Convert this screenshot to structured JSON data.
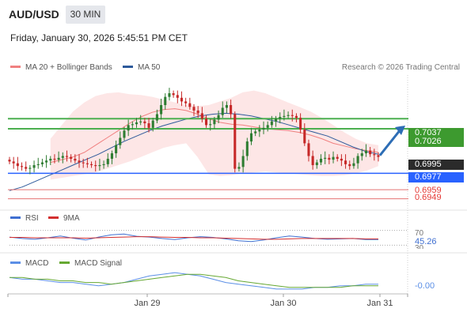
{
  "header": {
    "symbol": "AUD/USD",
    "timeframe": "30 MIN",
    "datetime": "Friday, January 30, 2026 5:45:51 PM CET"
  },
  "legend": {
    "ma20_bb": "MA 20 + Bollinger Bands",
    "ma50": "MA 50",
    "credit": "Research © 2026 Trading Central",
    "rsi": "RSI",
    "rsi_ma": "9MA",
    "macd": "MACD",
    "macd_signal": "MACD Signal"
  },
  "colors": {
    "candle_up": "#2e7d32",
    "candle_down": "#c62828",
    "bollinger_fill": "#fde2e2",
    "ma20": "#f08080",
    "ma50": "#2d5a9b",
    "resistance": "#4caf50",
    "support": "#2962ff",
    "red_level": "#e57373",
    "arrow": "#2d6db5",
    "rsi": "#3f6fd1",
    "rsi_ma": "#d32f2f",
    "macd": "#5b8fe6",
    "macd_signal": "#66a832"
  },
  "levels": {
    "resistance_1": "0.7037",
    "resistance_2": "0.7026",
    "current": "0.6995",
    "support_1": "0.6977",
    "support_2": "0.6959",
    "support_3": "0.6949"
  },
  "x_labels": [
    "Jan 29",
    "Jan 30",
    "Jan 31"
  ],
  "rsi_labels": {
    "level_70": "70",
    "value": "45.26",
    "level_30": "30"
  },
  "macd_labels": {
    "value": "-0.00"
  },
  "chart_data": [
    {
      "type": "candlestick",
      "title": "AUD/USD",
      "timeframe": "30 MIN",
      "x_tick_labels": [
        "Jan 29",
        "Jan 30",
        "Jan 31"
      ],
      "ylim": [
        0.694,
        0.7085
      ],
      "close": [
        0.699,
        0.6988,
        0.6985,
        0.6984,
        0.6982,
        0.6983,
        0.6986,
        0.6987,
        0.6989,
        0.6991,
        0.6993,
        0.6992,
        0.6994,
        0.6996,
        0.6995,
        0.6993,
        0.6991,
        0.6989,
        0.6988,
        0.6987,
        0.6986,
        0.6985,
        0.6986,
        0.6987,
        0.6993,
        0.6999,
        0.7008,
        0.7016,
        0.7024,
        0.703,
        0.7031,
        0.7033,
        0.7034,
        0.7032,
        0.7027,
        0.7035,
        0.7042,
        0.7052,
        0.7061,
        0.7065,
        0.7063,
        0.706,
        0.7056,
        0.7054,
        0.705,
        0.7046,
        0.7043,
        0.7037,
        0.703,
        0.7031,
        0.7036,
        0.7041,
        0.7049,
        0.7052,
        0.7042,
        0.6982,
        0.6984,
        0.6996,
        0.7012,
        0.7021,
        0.7023,
        0.7025,
        0.7027,
        0.703,
        0.7034,
        0.7037,
        0.7039,
        0.704,
        0.7041,
        0.704,
        0.7038,
        0.7025,
        0.701,
        0.6996,
        0.6986,
        0.6989,
        0.6993,
        0.6994,
        0.6992,
        0.6995,
        0.6993,
        0.6991,
        0.6987,
        0.6985,
        0.6988,
        0.6996,
        0.6999,
        0.7002,
        0.6998,
        0.6997,
        0.6995
      ],
      "series": [
        {
          "name": "MA 20 + Bollinger Bands",
          "role": "ma20",
          "start_bar": 10,
          "values": [
            0.6989,
            0.6992,
            0.6995,
            0.7,
            0.7008,
            0.7016,
            0.7024,
            0.7032,
            0.7039,
            0.7044,
            0.7047,
            0.7048,
            0.7046,
            0.7042,
            0.7037,
            0.7033,
            0.7031,
            0.703,
            0.7028,
            0.7026,
            0.7025,
            0.7024,
            0.7022,
            0.7019,
            0.7015,
            0.701,
            0.7007,
            0.7004,
            0.7002,
            0.7
          ]
        },
        {
          "name": "Bollinger upper",
          "role": "bb_upper",
          "start_bar": 10,
          "values": [
            0.7015,
            0.703,
            0.7045,
            0.7055,
            0.7062,
            0.7065,
            0.7066,
            0.7064,
            0.7063,
            0.7061,
            0.7058,
            0.7055,
            0.7052,
            0.7051,
            0.7052,
            0.7056,
            0.706,
            0.7066,
            0.7068,
            0.7065,
            0.706,
            0.7055,
            0.705,
            0.7045,
            0.7038,
            0.703,
            0.7022,
            0.7015,
            0.701,
            0.7008
          ]
        },
        {
          "name": "Bollinger lower",
          "role": "bb_lower",
          "start_bar": 10,
          "values": [
            0.697,
            0.6972,
            0.6974,
            0.6976,
            0.6978,
            0.6982,
            0.6986,
            0.699,
            0.6995,
            0.7,
            0.7005,
            0.7008,
            0.701,
            0.6995,
            0.6976,
            0.6974,
            0.6975,
            0.6977,
            0.6978,
            0.6979,
            0.6978,
            0.6977,
            0.6976,
            0.6975,
            0.6974,
            0.6974,
            0.6975,
            0.6977,
            0.698,
            0.6985
          ]
        },
        {
          "name": "MA 50",
          "role": "ma50",
          "start_bar": 0,
          "values": [
            0.6958,
            0.6962,
            0.6968,
            0.6974,
            0.698,
            0.6986,
            0.6992,
            0.6998,
            0.7005,
            0.7012,
            0.7018,
            0.7024,
            0.7029,
            0.7033,
            0.7037,
            0.704,
            0.7042,
            0.7043,
            0.7042,
            0.704,
            0.7037,
            0.7034,
            0.703,
            0.7026,
            0.7022,
            0.7018,
            0.7012,
            0.7006,
            0.7001,
            0.6998
          ]
        }
      ],
      "levels": [
        0.7037,
        0.7026,
        0.6995,
        0.6977,
        0.6959,
        0.6949
      ]
    },
    {
      "type": "line",
      "title": "RSI",
      "ylim": [
        20,
        80
      ],
      "reference_lines": [
        70,
        30
      ],
      "series": [
        {
          "name": "RSI",
          "values": [
            52,
            48,
            46,
            50,
            55,
            49,
            44,
            52,
            58,
            60,
            54,
            52,
            48,
            45,
            50,
            53,
            51,
            47,
            42,
            40,
            44,
            50,
            55,
            52,
            48,
            46,
            47,
            48,
            45,
            45.26
          ]
        },
        {
          "name": "9MA",
          "values": [
            51,
            51,
            50,
            50,
            50,
            50,
            49,
            50,
            51,
            52,
            53,
            53,
            52,
            51,
            51,
            50,
            50,
            49,
            48,
            47,
            46,
            46,
            47,
            48,
            48,
            48,
            48,
            48,
            47,
            47
          ]
        }
      ]
    },
    {
      "type": "line",
      "title": "MACD",
      "series": [
        {
          "name": "MACD",
          "values": [
            0.0004,
            0.0003,
            0.0003,
            0.0002,
            0.0001,
            0.0001,
            0.0,
            -0.0001,
            0.0,
            0.0001,
            0.0003,
            0.0005,
            0.0006,
            0.0007,
            0.0006,
            0.0005,
            0.0003,
            0.0001,
            0.0,
            -0.0001,
            -0.0002,
            -0.0003,
            -0.0003,
            -0.0003,
            -0.0002,
            -0.0002,
            -0.0001,
            -0.0001,
            0.0,
            -0.0
          ]
        },
        {
          "name": "MACD Signal",
          "values": [
            0.0004,
            0.0004,
            0.0003,
            0.0003,
            0.0002,
            0.0002,
            0.0001,
            0.0001,
            0.0,
            0.0001,
            0.0002,
            0.0003,
            0.0004,
            0.0005,
            0.0006,
            0.0006,
            0.0005,
            0.0004,
            0.0002,
            0.0001,
            0.0,
            -0.0001,
            -0.0002,
            -0.0002,
            -0.0002,
            -0.0002,
            -0.0002,
            -0.0001,
            -0.0001,
            -0.0001
          ]
        }
      ]
    }
  ]
}
